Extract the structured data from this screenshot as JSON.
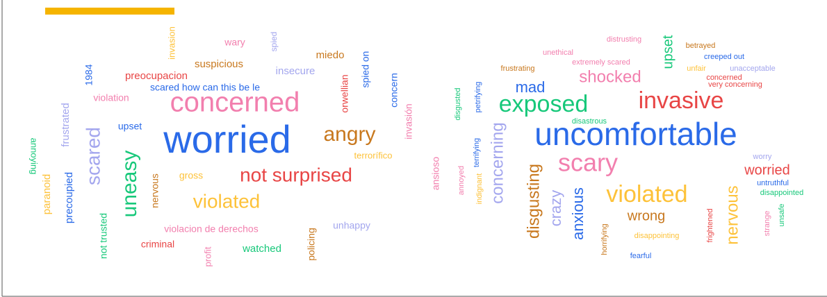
{
  "word_clouds": [
    {
      "words": [
        "wary",
        "spied",
        "invasion",
        "miedo",
        "suspicious",
        "spied on",
        "1984",
        "insecure",
        "preocupacion",
        "orwellian",
        "concern",
        "scared how can this be le",
        "violation",
        "concerned",
        "invasión",
        "frustrated",
        "upset",
        "scared",
        "worried",
        "angry",
        "annoying",
        "uneasy",
        "terrorífico",
        "gross",
        "not surprised",
        "paranoid",
        "precoupied",
        "nervous",
        "violated",
        "not trusted",
        "violacion de derechos",
        "unhappy",
        "policing",
        "criminal",
        "profit",
        "watched"
      ]
    },
    {
      "words": [
        "distrusting",
        "betrayed",
        "unethical",
        "upset",
        "creeped out",
        "extremely scared",
        "frustrating",
        "unfair",
        "unacceptable",
        "concerned",
        "very concerning",
        "shocked",
        "mad",
        "disgusted",
        "petrifying",
        "exposed",
        "invasive",
        "disastrous",
        "terrifying",
        "uncomfortable",
        "concerning",
        "annoyed",
        "ansioso",
        "worry",
        "scary",
        "worried",
        "disgusting",
        "untruthful",
        "indignant",
        "crazy",
        "disappointed",
        "violated",
        "anxious",
        "nervous",
        "wrong",
        "frightened",
        "strange",
        "unsafe",
        "horrifying",
        "disappointing",
        "fearful"
      ]
    }
  ]
}
